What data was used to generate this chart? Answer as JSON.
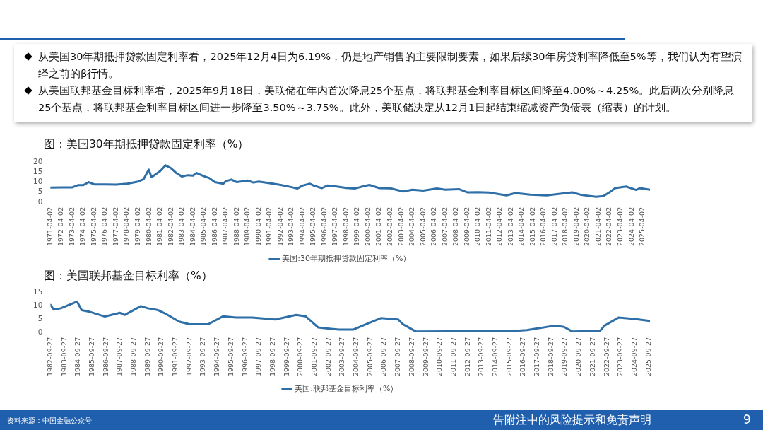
{
  "chart_data": [
    {
      "type": "other",
      "annotations": [
        "从美国30年期抵押贷款固定利率看，2025年12月4日为6.19%，仍是地产销售的主要限制要素，如果后续30年房贷利率降低至5%等，我们认为有望演绎之前的β行情。",
        "从美国联邦基金目标利率看，2025年9月18日，美联储在年内首次降息25个基点，将联邦基金利率目标区间降至4.00%～4.25%。此后两次分别降息25个基点，将联邦基金利率目标区间进一步降至3.50%～3.75%。此外，美联储决定从12月1日起结束缩减资产负债表（缩表）的计划。",
        "资料来源：中国金融公众号",
        "告附注中的风险提示和免责声明",
        "9"
      ]
    },
    {
      "type": "line",
      "title": "图：美国30年期抵押贷款固定利率（%）",
      "x": [
        "1971-04-02",
        "1972-04-02",
        "1973-04-02",
        "1973-10-02",
        "1974-04-02",
        "1974-10-02",
        "1975-04-02",
        "1976-04-02",
        "1977-04-02",
        "1978-04-02",
        "1979-04-02",
        "1979-10-02",
        "1980-03-20",
        "1980-06-20",
        "1981-04-02",
        "1981-10-02",
        "1982-04-02",
        "1982-10-02",
        "1983-04-02",
        "1983-10-02",
        "1984-04-02",
        "1984-08-02",
        "1985-04-02",
        "1985-10-02",
        "1986-04-02",
        "1987-01-02",
        "1987-04-02",
        "1987-10-02",
        "1988-04-02",
        "1989-04-02",
        "1989-10-02",
        "1990-04-02",
        "1991-04-02",
        "1992-04-02",
        "1993-04-02",
        "1993-10-02",
        "1994-04-02",
        "1994-12-02",
        "1995-04-02",
        "1996-01-02",
        "1996-07-02",
        "1997-04-02",
        "1998-04-02",
        "1999-01-02",
        "1999-10-02",
        "2000-05-02",
        "2001-04-02",
        "2002-04-02",
        "2003-06-02",
        "2004-04-02",
        "2005-04-02",
        "2006-07-02",
        "2007-04-02",
        "2008-07-02",
        "2009-04-02",
        "2010-04-02",
        "2011-04-02",
        "2012-11-02",
        "2013-09-02",
        "2015-01-02",
        "2016-07-02",
        "2018-11-02",
        "2019-09-02",
        "2021-01-02",
        "2021-09-02",
        "2022-04-02",
        "2022-10-02",
        "2023-10-02",
        "2024-09-02",
        "2025-01-02",
        "2025-12-04"
      ],
      "series": [
        {
          "name": "美国:30年期抵押贷款固定利率（%）",
          "color": "#2f6fa8",
          "values": [
            7.3,
            7.4,
            7.4,
            8.5,
            8.5,
            10,
            8.9,
            8.9,
            8.8,
            9.2,
            10.3,
            11.5,
            16.3,
            12.5,
            15.5,
            18.4,
            17,
            14.5,
            12.8,
            13.5,
            13.3,
            14.6,
            13,
            12,
            10,
            9.2,
            10.5,
            11.3,
            10,
            10.8,
            9.8,
            10.3,
            9.5,
            8.6,
            7.5,
            6.8,
            8.3,
            9.2,
            8.3,
            7,
            8.3,
            7.9,
            7.1,
            6.8,
            7.9,
            8.6,
            7,
            6.9,
            5.3,
            6.2,
            5.8,
            6.8,
            6.2,
            6.5,
            4.9,
            5,
            4.8,
            3.4,
            4.5,
            3.7,
            3.4,
            4.9,
            3.6,
            2.7,
            3,
            5,
            7,
            7.8,
            6.1,
            7,
            6.2
          ]
        }
      ],
      "xlim": [
        "1971-04-02",
        "2025-12-04"
      ],
      "ylim": [
        0,
        20
      ],
      "yticks": [
        0,
        5,
        10,
        15,
        20
      ],
      "xticks": [
        "1971-04-02",
        "1972-04-02",
        "1973-04-02",
        "1974-04-02",
        "1975-04-02",
        "1976-04-02",
        "1977-04-02",
        "1978-04-02",
        "1979-04-02",
        "1980-04-02",
        "1981-04-02",
        "1982-04-02",
        "1983-04-02",
        "1984-04-02",
        "1985-04-02",
        "1986-04-02",
        "1987-04-02",
        "1988-04-02",
        "1989-04-02",
        "1990-04-02",
        "1991-04-02",
        "1992-04-02",
        "1993-04-02",
        "1994-04-02",
        "1995-04-02",
        "1996-04-02",
        "1997-04-02",
        "1998-04-02",
        "1999-04-02",
        "2000-04-02",
        "2001-04-02",
        "2002-04-02",
        "2003-04-02",
        "2004-04-02",
        "2005-04-02",
        "2006-04-02",
        "2007-04-02",
        "2008-04-02",
        "2009-04-02",
        "2010-04-02",
        "2011-04-02",
        "2012-04-02",
        "2013-04-02",
        "2014-04-02",
        "2015-04-02",
        "2016-04-02",
        "2017-04-02",
        "2018-04-02",
        "2019-04-02",
        "2020-04-02",
        "2021-04-02",
        "2022-04-02",
        "2023-04-02",
        "2024-04-02",
        "2025-04-02"
      ],
      "grid": false,
      "legend": "bottom",
      "marker": "none",
      "line_style": "solid"
    },
    {
      "type": "line",
      "title": "图：美国联邦基金目标利率（%）",
      "x": [
        "1982-09-27",
        "1982-12-27",
        "1983-06-27",
        "1984-08-27",
        "1984-12-27",
        "1985-06-27",
        "1986-08-27",
        "1987-09-27",
        "1988-01-27",
        "1989-03-27",
        "1989-09-27",
        "1990-06-27",
        "1991-01-27",
        "1991-12-27",
        "1992-09-27",
        "1994-01-27",
        "1995-02-27",
        "1996-01-27",
        "1997-03-27",
        "1998-11-27",
        "2000-05-27",
        "2001-01-27",
        "2001-12-27",
        "2002-11-27",
        "2003-06-27",
        "2004-06-27",
        "2006-06-27",
        "2007-09-27",
        "2008-01-27",
        "2008-04-27",
        "2008-12-27",
        "2015-12-27",
        "2016-12-27",
        "2018-12-27",
        "2019-08-27",
        "2020-03-27",
        "2022-03-27",
        "2022-07-27",
        "2023-07-27",
        "2024-09-27",
        "2025-09-18",
        "2025-10-30"
      ],
      "series": [
        {
          "name": "美国:联邦基金目标利率（%）",
          "color": "#2f6fa8",
          "values": [
            10.3,
            8.5,
            9,
            11.5,
            8.3,
            7.8,
            5.9,
            7.3,
            6.5,
            9.8,
            9,
            8.3,
            6.8,
            4,
            3,
            3,
            6,
            5.5,
            5.5,
            4.8,
            6.5,
            6,
            1.8,
            1.3,
            1,
            1,
            5.3,
            4.8,
            3,
            2.3,
            0.3,
            0.5,
            0.8,
            2.5,
            2,
            0.3,
            0.5,
            2.5,
            5.5,
            5,
            4.3,
            4
          ]
        }
      ],
      "xlim": [
        "1982-09-27",
        "2025-10-30"
      ],
      "ylim": [
        0,
        15
      ],
      "yticks": [
        0,
        5,
        10,
        15
      ],
      "xticks": [
        "1982-09-27",
        "1983-09-27",
        "1984-09-27",
        "1985-09-27",
        "1986-09-27",
        "1987-09-27",
        "1988-09-27",
        "1989-09-27",
        "1990-09-27",
        "1991-09-27",
        "1992-09-27",
        "1993-09-27",
        "1994-09-27",
        "1995-09-27",
        "1996-09-27",
        "1997-09-27",
        "1998-09-27",
        "1999-09-27",
        "2000-09-27",
        "2001-09-27",
        "2002-09-27",
        "2003-09-27",
        "2004-09-27",
        "2005-09-27",
        "2006-09-27",
        "2007-09-27",
        "2008-09-27",
        "2009-09-27",
        "2010-09-27",
        "2011-09-27",
        "2012-09-27",
        "2013-09-27",
        "2014-09-27",
        "2015-09-27",
        "2016-09-27",
        "2017-09-27",
        "2018-09-27",
        "2019-09-27",
        "2020-09-27",
        "2021-09-27",
        "2022-09-27",
        "2023-09-27",
        "2024-09-27",
        "2025-09-27"
      ],
      "grid": false,
      "legend": "bottom",
      "marker": "none",
      "line_style": "solid"
    }
  ]
}
